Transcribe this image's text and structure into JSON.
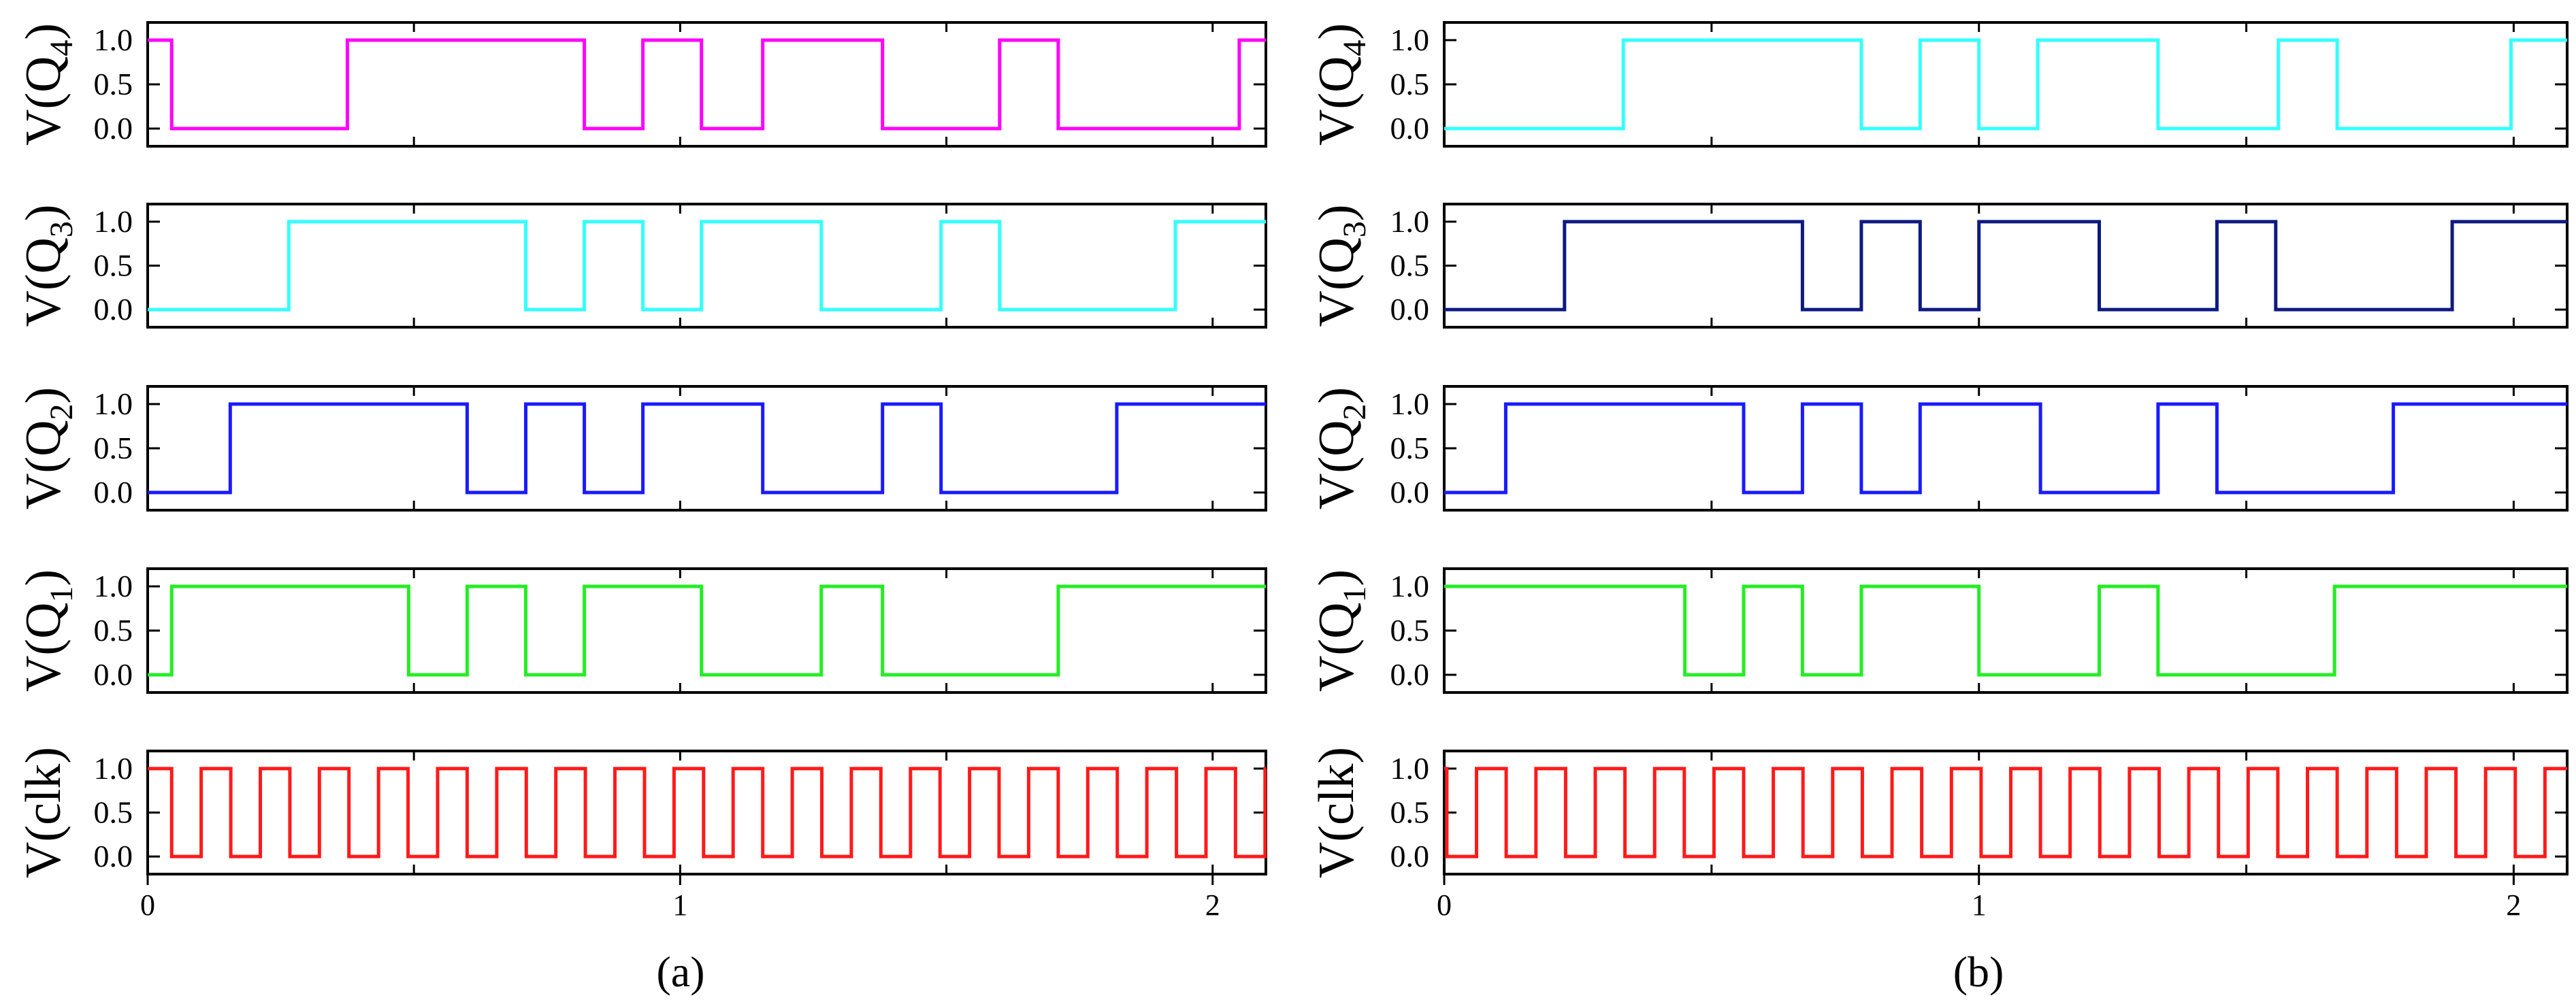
{
  "chart_data": [
    {
      "type": "line",
      "caption": "(a)",
      "x_ticks": [
        "0",
        "1",
        "2"
      ],
      "xlim": [
        0,
        2.1
      ],
      "ylim": [
        -0.2,
        1.2
      ],
      "y_ticks": [
        "0.0",
        "0.5",
        "1.0"
      ],
      "series": [
        {
          "name": "Q4",
          "label_main": "V(Q",
          "label_sub": "4",
          "label_close": ")",
          "color": "#ff00ff",
          "initial": 1,
          "transitions": [
            0.045,
            0.375,
            0.82,
            0.93,
            1.04,
            1.155,
            1.38,
            1.6,
            1.71,
            2.05
          ]
        },
        {
          "name": "Q3",
          "label_main": "V(Q",
          "label_sub": "3",
          "label_close": ")",
          "color": "#33ffff",
          "initial": 0,
          "transitions": [
            0.265,
            0.71,
            0.82,
            0.93,
            1.04,
            1.265,
            1.49,
            1.6,
            1.93
          ]
        },
        {
          "name": "Q2",
          "label_main": "V(Q",
          "label_sub": "2",
          "label_close": ")",
          "color": "#1a1aff",
          "initial": 0,
          "transitions": [
            0.155,
            0.6,
            0.71,
            0.82,
            0.93,
            1.155,
            1.38,
            1.49,
            1.82
          ]
        },
        {
          "name": "Q1",
          "label_main": "V(Q",
          "label_sub": "1",
          "label_close": ")",
          "color": "#22ee22",
          "initial": 0,
          "transitions": [
            0.045,
            0.49,
            0.6,
            0.71,
            0.82,
            1.04,
            1.265,
            1.38,
            1.71
          ]
        },
        {
          "name": "clk",
          "label_main": "V(clk)",
          "label_sub": "",
          "label_close": "",
          "color": "#ff1a1a",
          "initial": 1,
          "clock_period": 0.111,
          "clock_first_fall": 0.045
        }
      ]
    },
    {
      "type": "line",
      "caption": "(b)",
      "x_ticks": [
        "0",
        "1",
        "2"
      ],
      "xlim": [
        0,
        2.1
      ],
      "ylim": [
        -0.2,
        1.2
      ],
      "y_ticks": [
        "0.0",
        "0.5",
        "1.0"
      ],
      "series": [
        {
          "name": "Q4",
          "label_main": "V(Q",
          "label_sub": "4",
          "label_close": ")",
          "color": "#33ffff",
          "initial": 0,
          "transitions": [
            0.335,
            0.78,
            0.89,
            1.0,
            1.11,
            1.335,
            1.56,
            1.67,
            1.995
          ]
        },
        {
          "name": "Q3",
          "label_main": "V(Q",
          "label_sub": "3",
          "label_close": ")",
          "color": "#0d1a80",
          "initial": 0,
          "transitions": [
            0.225,
            0.67,
            0.78,
            0.89,
            1.0,
            1.225,
            1.445,
            1.555,
            1.885
          ]
        },
        {
          "name": "Q2",
          "label_main": "V(Q",
          "label_sub": "2",
          "label_close": ")",
          "color": "#1a1aff",
          "initial": 0,
          "transitions": [
            0.115,
            0.56,
            0.67,
            0.78,
            0.89,
            1.115,
            1.335,
            1.445,
            1.775
          ]
        },
        {
          "name": "Q1",
          "label_main": "V(Q",
          "label_sub": "1",
          "label_close": ")",
          "color": "#22ee22",
          "initial": 1,
          "transitions": [
            0.45,
            0.56,
            0.67,
            0.78,
            1.0,
            1.225,
            1.335,
            1.665
          ]
        },
        {
          "name": "clk",
          "label_main": "V(clk)",
          "label_sub": "",
          "label_close": "",
          "color": "#ff1a1a",
          "initial": 1,
          "clock_period": 0.111,
          "clock_first_fall": 0.005
        }
      ]
    }
  ]
}
